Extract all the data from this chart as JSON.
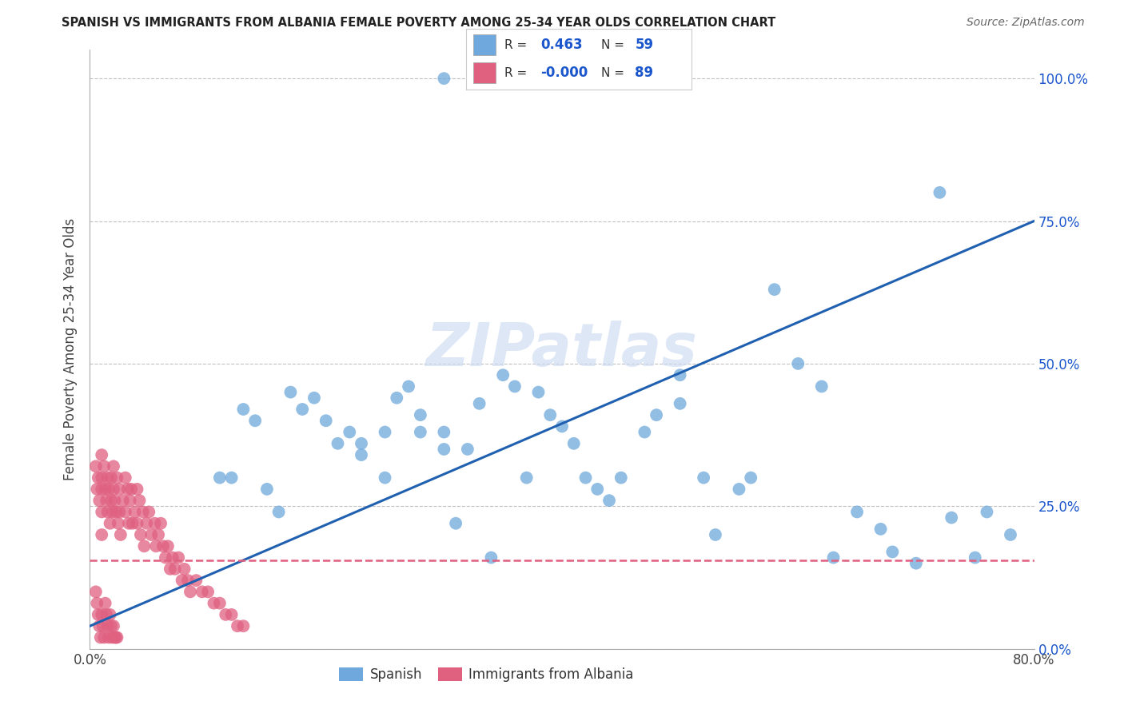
{
  "title": "SPANISH VS IMMIGRANTS FROM ALBANIA FEMALE POVERTY AMONG 25-34 YEAR OLDS CORRELATION CHART",
  "source": "Source: ZipAtlas.com",
  "ylabel": "Female Poverty Among 25-34 Year Olds",
  "xlim": [
    0.0,
    0.8
  ],
  "ylim": [
    0.0,
    1.05
  ],
  "ytick_positions": [
    0.0,
    0.25,
    0.5,
    0.75,
    1.0
  ],
  "yticklabels_right": [
    "0.0%",
    "25.0%",
    "50.0%",
    "75.0%",
    "100.0%"
  ],
  "xtick_positions": [
    0.0,
    0.8
  ],
  "xticklabels": [
    "0.0%",
    "80.0%"
  ],
  "R_spanish": 0.463,
  "N_spanish": 59,
  "R_albania": -0.0,
  "N_albania": 89,
  "blue_color": "#6fa8dc",
  "pink_color": "#e06080",
  "pink_scatter_color": "#e06080",
  "line_color_blue": "#2060b0",
  "line_color_pink": "#e06080",
  "legend_text_color": "#1a56cc",
  "legend_R_color": "#1a56cc",
  "grid_color": "#bbbbbb",
  "watermark": "ZIPatlas",
  "legend_labels": [
    "Spanish",
    "Immigrants from Albania"
  ],
  "bg_color": "#ffffff",
  "spanish_x": [
    0.3,
    0.13,
    0.14,
    0.17,
    0.18,
    0.19,
    0.2,
    0.21,
    0.22,
    0.23,
    0.25,
    0.26,
    0.27,
    0.28,
    0.28,
    0.3,
    0.3,
    0.32,
    0.33,
    0.35,
    0.36,
    0.37,
    0.38,
    0.39,
    0.4,
    0.41,
    0.42,
    0.43,
    0.44,
    0.45,
    0.47,
    0.48,
    0.5,
    0.5,
    0.52,
    0.53,
    0.55,
    0.56,
    0.58,
    0.6,
    0.62,
    0.63,
    0.65,
    0.67,
    0.68,
    0.7,
    0.72,
    0.73,
    0.75,
    0.76,
    0.78,
    0.11,
    0.12,
    0.15,
    0.16,
    0.23,
    0.25,
    0.31,
    0.34
  ],
  "spanish_y": [
    1.0,
    0.42,
    0.4,
    0.45,
    0.42,
    0.44,
    0.4,
    0.36,
    0.38,
    0.36,
    0.38,
    0.44,
    0.46,
    0.41,
    0.38,
    0.38,
    0.35,
    0.35,
    0.43,
    0.48,
    0.46,
    0.3,
    0.45,
    0.41,
    0.39,
    0.36,
    0.3,
    0.28,
    0.26,
    0.3,
    0.38,
    0.41,
    0.48,
    0.43,
    0.3,
    0.2,
    0.28,
    0.3,
    0.63,
    0.5,
    0.46,
    0.16,
    0.24,
    0.21,
    0.17,
    0.15,
    0.8,
    0.23,
    0.16,
    0.24,
    0.2,
    0.3,
    0.3,
    0.28,
    0.24,
    0.34,
    0.3,
    0.22,
    0.16
  ],
  "albania_x": [
    0.005,
    0.006,
    0.007,
    0.008,
    0.01,
    0.01,
    0.01,
    0.01,
    0.01,
    0.012,
    0.013,
    0.014,
    0.015,
    0.015,
    0.016,
    0.017,
    0.018,
    0.018,
    0.019,
    0.02,
    0.02,
    0.021,
    0.022,
    0.023,
    0.024,
    0.025,
    0.025,
    0.026,
    0.028,
    0.03,
    0.03,
    0.032,
    0.033,
    0.034,
    0.035,
    0.036,
    0.038,
    0.04,
    0.04,
    0.042,
    0.043,
    0.045,
    0.046,
    0.048,
    0.05,
    0.052,
    0.055,
    0.056,
    0.058,
    0.06,
    0.062,
    0.064,
    0.066,
    0.068,
    0.07,
    0.072,
    0.075,
    0.078,
    0.08,
    0.083,
    0.085,
    0.09,
    0.095,
    0.1,
    0.105,
    0.11,
    0.115,
    0.12,
    0.125,
    0.13,
    0.005,
    0.006,
    0.007,
    0.008,
    0.009,
    0.01,
    0.011,
    0.012,
    0.013,
    0.014,
    0.015,
    0.016,
    0.017,
    0.018,
    0.019,
    0.02,
    0.021,
    0.022,
    0.023
  ],
  "albania_y": [
    0.32,
    0.28,
    0.3,
    0.26,
    0.34,
    0.3,
    0.28,
    0.24,
    0.2,
    0.32,
    0.28,
    0.26,
    0.3,
    0.24,
    0.28,
    0.22,
    0.3,
    0.26,
    0.24,
    0.32,
    0.28,
    0.26,
    0.24,
    0.3,
    0.22,
    0.28,
    0.24,
    0.2,
    0.26,
    0.3,
    0.24,
    0.28,
    0.22,
    0.26,
    0.28,
    0.22,
    0.24,
    0.28,
    0.22,
    0.26,
    0.2,
    0.24,
    0.18,
    0.22,
    0.24,
    0.2,
    0.22,
    0.18,
    0.2,
    0.22,
    0.18,
    0.16,
    0.18,
    0.14,
    0.16,
    0.14,
    0.16,
    0.12,
    0.14,
    0.12,
    0.1,
    0.12,
    0.1,
    0.1,
    0.08,
    0.08,
    0.06,
    0.06,
    0.04,
    0.04,
    0.1,
    0.08,
    0.06,
    0.04,
    0.02,
    0.06,
    0.04,
    0.02,
    0.08,
    0.06,
    0.04,
    0.02,
    0.06,
    0.04,
    0.02,
    0.04,
    0.02,
    0.02,
    0.02
  ],
  "blue_line_x0": 0.0,
  "blue_line_y0": 0.04,
  "blue_line_x1": 0.8,
  "blue_line_y1": 0.75,
  "pink_line_y": 0.155
}
